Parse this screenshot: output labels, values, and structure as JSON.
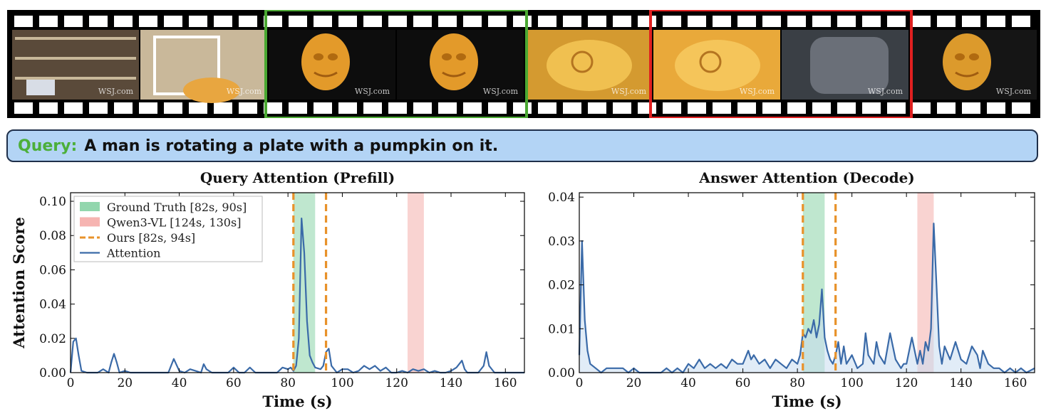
{
  "query": {
    "label": "Query:",
    "text": "A man is rotating a plate with a pumpkin on it."
  },
  "filmstrip": {
    "frames": [
      {
        "scene": "toy-shelf-room",
        "watermark": "WSJ.com"
      },
      {
        "scene": "blurry-pumpkin-carving",
        "watermark": "WSJ.com"
      },
      {
        "scene": "carved-pumpkin-face-on-plate",
        "watermark": "WSJ.com"
      },
      {
        "scene": "carved-pumpkin-face-rotated",
        "watermark": "WSJ.com"
      },
      {
        "scene": "carving-pumpkin-closeup",
        "watermark": "WSJ.com"
      },
      {
        "scene": "pumpkin-eye-closeup",
        "watermark": "WSJ.com"
      },
      {
        "scene": "man-gray-shirt",
        "watermark": "WSJ.com"
      },
      {
        "scene": "pumpkin-face-punch",
        "watermark": "WSJ.com"
      }
    ],
    "highlights": [
      {
        "color": "#4aa832",
        "frames": [
          2,
          3
        ]
      },
      {
        "color": "#e02020",
        "frames": [
          5,
          6
        ]
      }
    ]
  },
  "chart_data": [
    {
      "type": "line",
      "title": "Query Attention (Prefill)",
      "xlabel": "Time (s)",
      "ylabel": "Attention Score",
      "xlim": [
        0,
        167
      ],
      "ylim": [
        0,
        0.105
      ],
      "xticks": [
        0,
        20,
        40,
        60,
        80,
        100,
        120,
        140,
        160
      ],
      "yticks": [
        "0.00",
        "0.02",
        "0.04",
        "0.06",
        "0.08",
        "0.10"
      ],
      "legend": {
        "placement": "top-left",
        "entries": [
          {
            "label": "Ground Truth [82s, 90s]",
            "kind": "patch",
            "color": "#7fcf9f"
          },
          {
            "label": "Qwen3-VL [124s, 130s]",
            "kind": "patch",
            "color": "#f4a7a3"
          },
          {
            "label": "Ours [82s, 94s]",
            "kind": "dashed",
            "color": "#e8922a"
          },
          {
            "label": "Attention",
            "kind": "line",
            "color": "#3a6aa8"
          }
        ]
      },
      "spans": [
        {
          "from": 82,
          "to": 90,
          "color": "#7fcf9f"
        },
        {
          "from": 124,
          "to": 130,
          "color": "#f4a7a3"
        }
      ],
      "vlines": [
        82,
        94
      ],
      "series": {
        "color": "#3a6aa8",
        "fill": false,
        "x": [
          0,
          1,
          2,
          3,
          4,
          6,
          8,
          10,
          12,
          14,
          15,
          16,
          17,
          18,
          20,
          22,
          25,
          28,
          30,
          32,
          34,
          36,
          37,
          38,
          40,
          42,
          44,
          46,
          48,
          49,
          50,
          52,
          54,
          56,
          58,
          60,
          62,
          64,
          66,
          68,
          70,
          72,
          74,
          76,
          78,
          80,
          81,
          82,
          83,
          84,
          85,
          86,
          87,
          88,
          89,
          90,
          92,
          93,
          94,
          95,
          96,
          98,
          100,
          102,
          104,
          106,
          108,
          110,
          112,
          114,
          116,
          118,
          120,
          122,
          124,
          126,
          128,
          130,
          132,
          134,
          136,
          138,
          140,
          142,
          144,
          145,
          146,
          148,
          150,
          152,
          153,
          154,
          156,
          158,
          160,
          162,
          164,
          167
        ],
        "y": [
          0.0,
          0.018,
          0.02,
          0.01,
          0.001,
          0.0,
          0.0,
          0.0,
          0.002,
          0.0,
          0.006,
          0.011,
          0.006,
          0.0,
          0.001,
          0.0,
          0.0,
          0.0,
          0.0,
          0.0,
          0.0,
          0.0,
          0.004,
          0.008,
          0.001,
          0.0,
          0.002,
          0.001,
          0.0,
          0.005,
          0.002,
          0.0,
          0.0,
          0.0,
          0.0,
          0.003,
          0.0,
          0.0,
          0.003,
          0.0,
          0.0,
          0.0,
          0.0,
          0.0,
          0.003,
          0.002,
          0.003,
          0.001,
          0.004,
          0.02,
          0.09,
          0.07,
          0.03,
          0.01,
          0.006,
          0.003,
          0.002,
          0.004,
          0.012,
          0.014,
          0.004,
          0.0,
          0.002,
          0.002,
          0.0,
          0.001,
          0.004,
          0.002,
          0.004,
          0.001,
          0.003,
          0.0,
          0.0,
          0.001,
          0.0,
          0.002,
          0.001,
          0.002,
          0.0,
          0.001,
          0.0,
          0.0,
          0.001,
          0.003,
          0.007,
          0.002,
          0.0,
          0.0,
          0.0,
          0.004,
          0.012,
          0.004,
          0.0,
          0.0,
          0.0,
          0.0,
          0.0,
          0.0
        ]
      }
    },
    {
      "type": "area",
      "title": "Answer Attention (Decode)",
      "xlabel": "Time (s)",
      "ylabel": "",
      "xlim": [
        0,
        167
      ],
      "ylim": [
        0,
        0.041
      ],
      "xticks": [
        0,
        20,
        40,
        60,
        80,
        100,
        120,
        140,
        160
      ],
      "yticks": [
        "0.00",
        "0.01",
        "0.02",
        "0.03",
        "0.04"
      ],
      "spans": [
        {
          "from": 82,
          "to": 90,
          "color": "#7fcf9f"
        },
        {
          "from": 124,
          "to": 130,
          "color": "#f4a7a3"
        }
      ],
      "vlines": [
        82,
        94
      ],
      "series": {
        "color": "#3a6aa8",
        "fill": true,
        "x": [
          0,
          1,
          2,
          3,
          4,
          6,
          8,
          10,
          12,
          14,
          16,
          18,
          20,
          22,
          24,
          26,
          28,
          30,
          32,
          34,
          36,
          38,
          40,
          42,
          44,
          46,
          48,
          50,
          52,
          54,
          56,
          58,
          60,
          62,
          63,
          64,
          66,
          68,
          70,
          72,
          74,
          76,
          78,
          80,
          81,
          82,
          83,
          84,
          85,
          86,
          87,
          88,
          89,
          90,
          91,
          92,
          93,
          94,
          95,
          96,
          97,
          98,
          100,
          102,
          104,
          105,
          106,
          108,
          109,
          110,
          112,
          114,
          116,
          118,
          119,
          120,
          122,
          124,
          125,
          126,
          127,
          128,
          129,
          130,
          131,
          132,
          133,
          134,
          136,
          138,
          140,
          142,
          144,
          146,
          147,
          148,
          150,
          152,
          154,
          156,
          158,
          160,
          162,
          164,
          167
        ],
        "y": [
          0.004,
          0.03,
          0.012,
          0.005,
          0.002,
          0.001,
          0.0,
          0.001,
          0.001,
          0.001,
          0.001,
          0.0,
          0.001,
          0.0,
          0.0,
          0.0,
          0.0,
          0.0,
          0.001,
          0.0,
          0.001,
          0.0,
          0.002,
          0.001,
          0.003,
          0.001,
          0.002,
          0.001,
          0.002,
          0.001,
          0.003,
          0.002,
          0.002,
          0.005,
          0.003,
          0.004,
          0.002,
          0.003,
          0.001,
          0.003,
          0.002,
          0.001,
          0.003,
          0.002,
          0.004,
          0.009,
          0.008,
          0.01,
          0.009,
          0.012,
          0.008,
          0.011,
          0.019,
          0.008,
          0.005,
          0.003,
          0.002,
          0.004,
          0.007,
          0.002,
          0.006,
          0.002,
          0.004,
          0.001,
          0.002,
          0.009,
          0.004,
          0.002,
          0.007,
          0.004,
          0.002,
          0.009,
          0.003,
          0.001,
          0.002,
          0.002,
          0.008,
          0.002,
          0.005,
          0.002,
          0.007,
          0.005,
          0.01,
          0.034,
          0.02,
          0.006,
          0.002,
          0.006,
          0.003,
          0.007,
          0.003,
          0.002,
          0.006,
          0.004,
          0.001,
          0.005,
          0.002,
          0.001,
          0.001,
          0.0,
          0.001,
          0.0,
          0.001,
          0.0,
          0.001
        ]
      }
    }
  ]
}
